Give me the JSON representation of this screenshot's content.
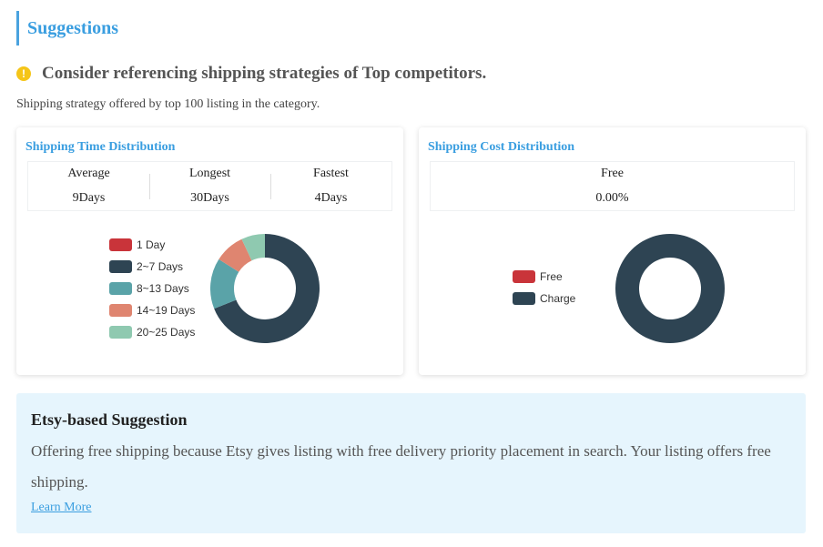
{
  "section_title": "Suggestions",
  "heading": "Consider referencing shipping strategies of Top competitors.",
  "warning_icon_glyph": "!",
  "subtext": "Shipping strategy offered by top 100 listing in the category.",
  "time_card": {
    "title": "Shipping Time Distribution",
    "stats": [
      {
        "label": "Average",
        "value": "9Days"
      },
      {
        "label": "Longest",
        "value": "30Days"
      },
      {
        "label": "Fastest",
        "value": "4Days"
      }
    ],
    "chart_legend": [
      "1 Day",
      "2~7 Days",
      "8~13 Days",
      "14~19 Days",
      "20~25 Days"
    ]
  },
  "cost_card": {
    "title": "Shipping Cost Distribution",
    "stats": [
      {
        "label": "Free",
        "value": "0.00%"
      }
    ],
    "chart_legend": [
      "Free",
      "Charge"
    ]
  },
  "chart_data": [
    {
      "type": "pie",
      "title": "Shipping Time Distribution",
      "categories": [
        "1 Day",
        "2~7 Days",
        "8~13 Days",
        "14~19 Days",
        "20~25 Days"
      ],
      "values": [
        0,
        69,
        15,
        9,
        7
      ],
      "colors": [
        "#c9343a",
        "#2e4453",
        "#5aa3a8",
        "#df8570",
        "#8fc9b0"
      ],
      "donut": true,
      "legend": "left"
    },
    {
      "type": "pie",
      "title": "Shipping Cost Distribution",
      "categories": [
        "Free",
        "Charge"
      ],
      "values": [
        0,
        100
      ],
      "colors": [
        "#c9343a",
        "#2e4453"
      ],
      "donut": true,
      "legend": "left"
    }
  ],
  "suggestion": {
    "title": "Etsy-based Suggestion",
    "body": "Offering free shipping because Etsy gives listing with free delivery priority placement in search. Your listing offers free shipping.",
    "link_label": "Learn More"
  }
}
